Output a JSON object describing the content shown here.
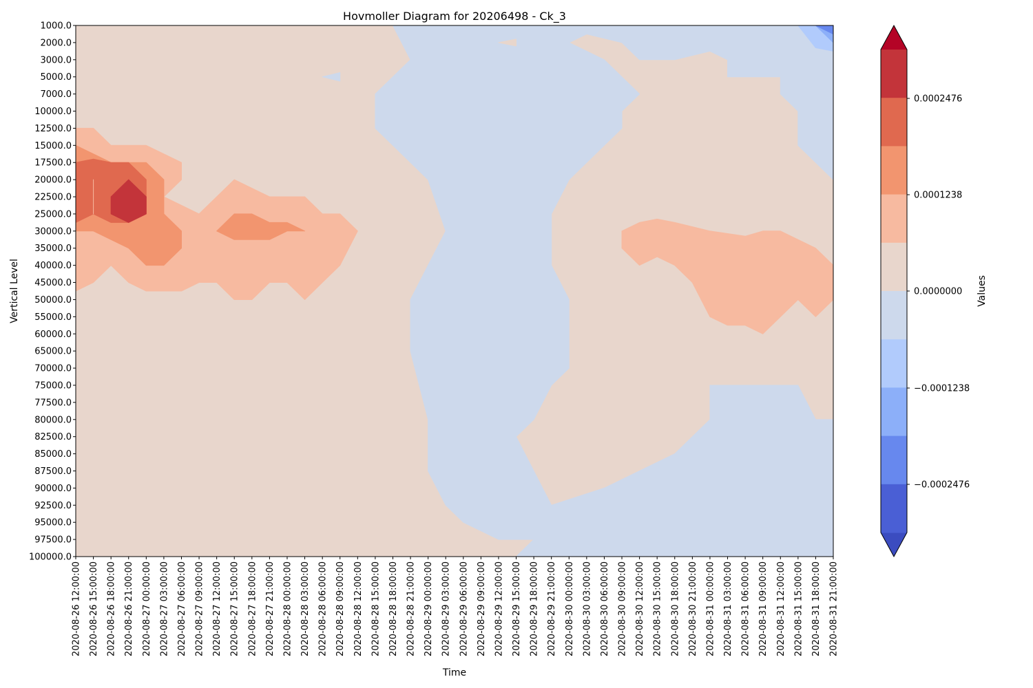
{
  "chart_data": {
    "type": "heatmap",
    "subtype": "filled-contour",
    "title": "Hovmoller Diagram for 20206498 - Ck_3",
    "xlabel": "Time",
    "ylabel": "Vertical Level",
    "y_inverted": true,
    "x_ticks": [
      "2020-08-26 12:00:00",
      "2020-08-26 15:00:00",
      "2020-08-26 18:00:00",
      "2020-08-26 21:00:00",
      "2020-08-27 00:00:00",
      "2020-08-27 03:00:00",
      "2020-08-27 06:00:00",
      "2020-08-27 09:00:00",
      "2020-08-27 12:00:00",
      "2020-08-27 15:00:00",
      "2020-08-27 18:00:00",
      "2020-08-27 21:00:00",
      "2020-08-28 00:00:00",
      "2020-08-28 03:00:00",
      "2020-08-28 06:00:00",
      "2020-08-28 09:00:00",
      "2020-08-28 12:00:00",
      "2020-08-28 15:00:00",
      "2020-08-28 18:00:00",
      "2020-08-28 21:00:00",
      "2020-08-29 00:00:00",
      "2020-08-29 03:00:00",
      "2020-08-29 06:00:00",
      "2020-08-29 09:00:00",
      "2020-08-29 12:00:00",
      "2020-08-29 15:00:00",
      "2020-08-29 18:00:00",
      "2020-08-29 21:00:00",
      "2020-08-30 00:00:00",
      "2020-08-30 03:00:00",
      "2020-08-30 06:00:00",
      "2020-08-30 09:00:00",
      "2020-08-30 12:00:00",
      "2020-08-30 15:00:00",
      "2020-08-30 18:00:00",
      "2020-08-30 21:00:00",
      "2020-08-31 00:00:00",
      "2020-08-31 03:00:00",
      "2020-08-31 06:00:00",
      "2020-08-31 09:00:00",
      "2020-08-31 12:00:00",
      "2020-08-31 15:00:00",
      "2020-08-31 18:00:00",
      "2020-08-31 21:00:00"
    ],
    "y_ticks": [
      "1000.0",
      "2000.0",
      "3000.0",
      "5000.0",
      "7000.0",
      "10000.0",
      "12500.0",
      "15000.0",
      "17500.0",
      "20000.0",
      "22500.0",
      "25000.0",
      "30000.0",
      "35000.0",
      "40000.0",
      "45000.0",
      "50000.0",
      "55000.0",
      "60000.0",
      "65000.0",
      "70000.0",
      "75000.0",
      "77500.0",
      "80000.0",
      "82500.0",
      "85000.0",
      "87500.0",
      "90000.0",
      "92500.0",
      "95000.0",
      "97500.0",
      "100000.0"
    ],
    "colorbar": {
      "label": "Values",
      "extend": "both",
      "level_colors": [
        "#3b4cc0",
        "#4a5fd5",
        "#6788ee",
        "#8caff9",
        "#b1cbfc",
        "#cdd9ec",
        "#e8d6cc",
        "#f7baa0",
        "#f2956f",
        "#e0694f",
        "#c3343a",
        "#b40426"
      ],
      "ticks": [
        "0.0002476",
        "0.0001238",
        "0.0000000",
        "−0.0001238",
        "−0.0002476"
      ]
    },
    "regions": [
      {
        "category": "weak negative",
        "color": "#cdd9ec",
        "outline": [
          [
            "2020-08-28 18:00:00",
            "1000.0"
          ],
          [
            "2020-08-29 12:00:00",
            "1000.0"
          ],
          [
            "2020-08-31 18:00:00",
            "1000.0"
          ],
          [
            "2020-08-31 21:00:00",
            "1000.0"
          ],
          [
            "2020-08-31 21:00:00",
            "20000.0"
          ],
          [
            "2020-08-31 18:00:00",
            "17500.0"
          ],
          [
            "2020-08-31 15:00:00",
            "15000.0"
          ],
          [
            "2020-08-31 15:00:00",
            "10000.0"
          ],
          [
            "2020-08-31 12:00:00",
            "7000.0"
          ],
          [
            "2020-08-31 12:00:00",
            "5000.0"
          ],
          [
            "2020-08-31 09:00:00",
            "5000.0"
          ],
          [
            "2020-08-31 03:00:00",
            "5000.0"
          ],
          [
            "2020-08-31 03:00:00",
            "3000.0"
          ],
          [
            "2020-08-31 00:00:00",
            "2500.0"
          ],
          [
            "2020-08-30 18:00:00",
            "3000.0"
          ],
          [
            "2020-08-30 12:00:00",
            "3000.0"
          ],
          [
            "2020-08-30 09:00:00",
            "2000.0"
          ],
          [
            "2020-08-30 03:00:00",
            "1500.0"
          ],
          [
            "2020-08-30 00:00:00",
            "2000.0"
          ],
          [
            "2020-08-30 06:00:00",
            "3000.0"
          ],
          [
            "2020-08-30 09:00:00",
            "5000.0"
          ],
          [
            "2020-08-30 12:00:00",
            "7000.0"
          ],
          [
            "2020-08-30 09:00:00",
            "10000.0"
          ],
          [
            "2020-08-30 09:00:00",
            "12500.0"
          ],
          [
            "2020-08-30 06:00:00",
            "15000.0"
          ],
          [
            "2020-08-30 03:00:00",
            "17500.0"
          ],
          [
            "2020-08-30 00:00:00",
            "20000.0"
          ],
          [
            "2020-08-29 21:00:00",
            "25000.0"
          ],
          [
            "2020-08-29 21:00:00",
            "40000.0"
          ],
          [
            "2020-08-30 00:00:00",
            "50000.0"
          ],
          [
            "2020-08-30 00:00:00",
            "60000.0"
          ],
          [
            "2020-08-30 00:00:00",
            "70000.0"
          ],
          [
            "2020-08-29 21:00:00",
            "75000.0"
          ],
          [
            "2020-08-29 18:00:00",
            "80000.0"
          ],
          [
            "2020-08-29 15:00:00",
            "82500.0"
          ],
          [
            "2020-08-29 18:00:00",
            "87500.0"
          ],
          [
            "2020-08-29 21:00:00",
            "92500.0"
          ],
          [
            "2020-08-30 06:00:00",
            "90000.0"
          ],
          [
            "2020-08-30 12:00:00",
            "87500.0"
          ],
          [
            "2020-08-30 18:00:00",
            "85000.0"
          ],
          [
            "2020-08-31 00:00:00",
            "80000.0"
          ],
          [
            "2020-08-31 00:00:00",
            "75000.0"
          ],
          [
            "2020-08-31 09:00:00",
            "75000.0"
          ],
          [
            "2020-08-31 15:00:00",
            "75000.0"
          ],
          [
            "2020-08-31 18:00:00",
            "80000.0"
          ],
          [
            "2020-08-31 21:00:00",
            "80000.0"
          ],
          [
            "2020-08-31 21:00:00",
            "100000.0"
          ],
          [
            "2020-08-29 15:00:00",
            "100000.0"
          ],
          [
            "2020-08-29 18:00:00",
            "97500.0"
          ],
          [
            "2020-08-29 12:00:00",
            "97500.0"
          ],
          [
            "2020-08-29 06:00:00",
            "95000.0"
          ],
          [
            "2020-08-29 03:00:00",
            "92500.0"
          ],
          [
            "2020-08-29 00:00:00",
            "87500.0"
          ],
          [
            "2020-08-29 00:00:00",
            "80000.0"
          ],
          [
            "2020-08-28 21:00:00",
            "65000.0"
          ],
          [
            "2020-08-28 21:00:00",
            "50000.0"
          ],
          [
            "2020-08-29 00:00:00",
            "40000.0"
          ],
          [
            "2020-08-29 03:00:00",
            "30000.0"
          ],
          [
            "2020-08-29 00:00:00",
            "20000.0"
          ],
          [
            "2020-08-28 21:00:00",
            "17500.0"
          ],
          [
            "2020-08-28 18:00:00",
            "15000.0"
          ],
          [
            "2020-08-28 15:00:00",
            "12500.0"
          ],
          [
            "2020-08-28 15:00:00",
            "7000.0"
          ],
          [
            "2020-08-28 21:00:00",
            "3000.0"
          ]
        ]
      },
      {
        "category": "weak negative",
        "color": "#cdd9ec",
        "outline": [
          [
            "2020-08-28 06:00:00",
            "5000.0"
          ],
          [
            "2020-08-28 09:00:00",
            "4500.0"
          ],
          [
            "2020-08-28 09:00:00",
            "5500.0"
          ]
        ]
      },
      {
        "category": "weak positive",
        "color": "#e8d6cc",
        "outline": [
          [
            "2020-08-29 12:00:00",
            "2000.0"
          ],
          [
            "2020-08-29 15:00:00",
            "1800.0"
          ],
          [
            "2020-08-29 15:00:00",
            "2200.0"
          ]
        ]
      },
      {
        "category": "moderate negative",
        "color": "#b1cbfc",
        "outline": [
          [
            "2020-08-31 15:00:00",
            "1000.0"
          ],
          [
            "2020-08-31 21:00:00",
            "1000.0"
          ],
          [
            "2020-08-31 21:00:00",
            "2500.0"
          ],
          [
            "2020-08-31 18:00:00",
            "2300.0"
          ]
        ]
      },
      {
        "category": "strong negative",
        "color": "#8caff9",
        "outline": [
          [
            "2020-08-31 18:00:00",
            "1000.0"
          ],
          [
            "2020-08-31 21:00:00",
            "1000.0"
          ],
          [
            "2020-08-31 21:00:00",
            "2000.0"
          ]
        ]
      },
      {
        "category": "very strong negative",
        "color": "#6788ee",
        "outline": [
          [
            "2020-08-31 18:00:00",
            "1000.0"
          ],
          [
            "2020-08-31 21:00:00",
            "1000.0"
          ],
          [
            "2020-08-31 21:00:00",
            "1500.0"
          ]
        ]
      },
      {
        "category": "moderate positive",
        "color": "#f7baa0",
        "outline": [
          [
            "2020-08-26 12:00:00",
            "12500.0"
          ],
          [
            "2020-08-26 15:00:00",
            "12500.0"
          ],
          [
            "2020-08-26 18:00:00",
            "15000.0"
          ],
          [
            "2020-08-26 21:00:00",
            "15000.0"
          ],
          [
            "2020-08-27 00:00:00",
            "15000.0"
          ],
          [
            "2020-08-27 06:00:00",
            "17500.0"
          ],
          [
            "2020-08-27 06:00:00",
            "20000.0"
          ],
          [
            "2020-08-27 03:00:00",
            "22500.0"
          ],
          [
            "2020-08-27 09:00:00",
            "25000.0"
          ],
          [
            "2020-08-27 12:00:00",
            "22500.0"
          ],
          [
            "2020-08-27 15:00:00",
            "20000.0"
          ],
          [
            "2020-08-27 21:00:00",
            "22500.0"
          ],
          [
            "2020-08-28 03:00:00",
            "22500.0"
          ],
          [
            "2020-08-28 06:00:00",
            "25000.0"
          ],
          [
            "2020-08-28 09:00:00",
            "25000.0"
          ],
          [
            "2020-08-28 12:00:00",
            "30000.0"
          ],
          [
            "2020-08-28 09:00:00",
            "40000.0"
          ],
          [
            "2020-08-28 06:00:00",
            "45000.0"
          ],
          [
            "2020-08-28 03:00:00",
            "50000.0"
          ],
          [
            "2020-08-28 00:00:00",
            "45000.0"
          ],
          [
            "2020-08-27 21:00:00",
            "45000.0"
          ],
          [
            "2020-08-27 18:00:00",
            "50000.0"
          ],
          [
            "2020-08-27 15:00:00",
            "50000.0"
          ],
          [
            "2020-08-27 12:00:00",
            "45000.0"
          ],
          [
            "2020-08-27 09:00:00",
            "45000.0"
          ],
          [
            "2020-08-27 06:00:00",
            "47500.0"
          ],
          [
            "2020-08-27 00:00:00",
            "47500.0"
          ],
          [
            "2020-08-26 21:00:00",
            "45000.0"
          ],
          [
            "2020-08-26 18:00:00",
            "40000.0"
          ],
          [
            "2020-08-26 15:00:00",
            "45000.0"
          ],
          [
            "2020-08-26 12:00:00",
            "47500.0"
          ]
        ]
      },
      {
        "category": "moderate positive",
        "color": "#f7baa0",
        "outline": [
          [
            "2020-08-30 09:00:00",
            "30000.0"
          ],
          [
            "2020-08-30 12:00:00",
            "27500.0"
          ],
          [
            "2020-08-30 15:00:00",
            "26500.0"
          ],
          [
            "2020-08-30 18:00:00",
            "27500.0"
          ],
          [
            "2020-08-31 00:00:00",
            "30000.0"
          ],
          [
            "2020-08-31 06:00:00",
            "31500.0"
          ],
          [
            "2020-08-31 09:00:00",
            "30000.0"
          ],
          [
            "2020-08-31 12:00:00",
            "30000.0"
          ],
          [
            "2020-08-31 18:00:00",
            "35000.0"
          ],
          [
            "2020-08-31 21:00:00",
            "40000.0"
          ],
          [
            "2020-08-31 21:00:00",
            "50000.0"
          ],
          [
            "2020-08-31 18:00:00",
            "55000.0"
          ],
          [
            "2020-08-31 15:00:00",
            "50000.0"
          ],
          [
            "2020-08-31 12:00:00",
            "55000.0"
          ],
          [
            "2020-08-31 09:00:00",
            "60000.0"
          ],
          [
            "2020-08-31 06:00:00",
            "57500.0"
          ],
          [
            "2020-08-31 03:00:00",
            "57500.0"
          ],
          [
            "2020-08-31 00:00:00",
            "55000.0"
          ],
          [
            "2020-08-30 21:00:00",
            "45000.0"
          ],
          [
            "2020-08-30 18:00:00",
            "40000.0"
          ],
          [
            "2020-08-30 15:00:00",
            "37500.0"
          ],
          [
            "2020-08-30 12:00:00",
            "40000.0"
          ],
          [
            "2020-08-30 09:00:00",
            "35000.0"
          ]
        ]
      },
      {
        "category": "strong positive",
        "color": "#f2956f",
        "outline": [
          [
            "2020-08-26 12:00:00",
            "15000.0"
          ],
          [
            "2020-08-26 18:00:00",
            "17500.0"
          ],
          [
            "2020-08-27 00:00:00",
            "17500.0"
          ],
          [
            "2020-08-27 03:00:00",
            "20000.0"
          ],
          [
            "2020-08-27 03:00:00",
            "25000.0"
          ],
          [
            "2020-08-27 06:00:00",
            "30000.0"
          ],
          [
            "2020-08-27 06:00:00",
            "35000.0"
          ],
          [
            "2020-08-27 03:00:00",
            "40000.0"
          ],
          [
            "2020-08-27 00:00:00",
            "40000.0"
          ],
          [
            "2020-08-26 21:00:00",
            "35000.0"
          ],
          [
            "2020-08-26 15:00:00",
            "30000.0"
          ],
          [
            "2020-08-26 12:00:00",
            "30000.0"
          ]
        ]
      },
      {
        "category": "strong positive",
        "color": "#f2956f",
        "outline": [
          [
            "2020-08-27 12:00:00",
            "30000.0"
          ],
          [
            "2020-08-27 15:00:00",
            "25000.0"
          ],
          [
            "2020-08-27 18:00:00",
            "25000.0"
          ],
          [
            "2020-08-27 21:00:00",
            "27500.0"
          ],
          [
            "2020-08-28 00:00:00",
            "27500.0"
          ],
          [
            "2020-08-28 03:00:00",
            "30000.0"
          ],
          [
            "2020-08-28 00:00:00",
            "30000.0"
          ],
          [
            "2020-08-27 21:00:00",
            "32500.0"
          ],
          [
            "2020-08-27 18:00:00",
            "32500.0"
          ],
          [
            "2020-08-27 15:00:00",
            "32500.0"
          ]
        ]
      },
      {
        "category": "very strong positive",
        "color": "#e0694f",
        "outline": [
          [
            "2020-08-26 12:00:00",
            "17500.0"
          ],
          [
            "2020-08-26 15:00:00",
            "17000.0"
          ],
          [
            "2020-08-26 18:00:00",
            "17500.0"
          ],
          [
            "2020-08-26 21:00:00",
            "17500.0"
          ],
          [
            "2020-08-27 00:00:00",
            "20000.0"
          ],
          [
            "2020-08-27 00:00:00",
            "25000.0"
          ],
          [
            "2020-08-26 21:00:00",
            "27500.0"
          ],
          [
            "2020-08-26 18:00:00",
            "27500.0"
          ],
          [
            "2020-08-26 15:00:00",
            "25000.0"
          ],
          [
            "2020-08-26 12:00:00",
            "27500.0"
          ]
        ]
      },
      {
        "category": "moderate positive",
        "color": "#f7baa0",
        "outline": [
          [
            "2020-08-26 15:00:00",
            "20000.0"
          ],
          [
            "2020-08-26 15:00:00",
            "22500.0"
          ],
          [
            "2020-08-26 15:00:00",
            "25000.0"
          ],
          [
            "2020-08-26 15:00:00",
            "22500.0"
          ]
        ]
      },
      {
        "category": "extreme positive",
        "color": "#c3343a",
        "outline": [
          [
            "2020-08-26 18:00:00",
            "22500.0"
          ],
          [
            "2020-08-26 21:00:00",
            "20000.0"
          ],
          [
            "2020-08-27 00:00:00",
            "22500.0"
          ],
          [
            "2020-08-27 00:00:00",
            "25000.0"
          ],
          [
            "2020-08-26 21:00:00",
            "27500.0"
          ],
          [
            "2020-08-26 18:00:00",
            "25000.0"
          ]
        ]
      }
    ]
  }
}
